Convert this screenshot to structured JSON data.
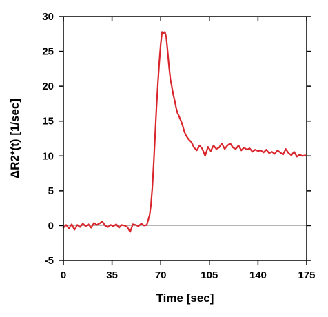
{
  "chart_data": {
    "type": "line",
    "title": "",
    "xlabel": "Time [sec]",
    "ylabel": "ΔR2*(t) [1/sec]",
    "xlim": [
      0,
      175
    ],
    "ylim": [
      -5,
      30
    ],
    "xticks": [
      0,
      35,
      70,
      105,
      140,
      175
    ],
    "yticks": [
      -5,
      0,
      5,
      10,
      15,
      20,
      25,
      30
    ],
    "grid": false,
    "reference_line_y": 0,
    "colors": {
      "series": "#d9262c",
      "reference_line": "#b4b4b4",
      "axes": "#000000"
    },
    "series": [
      {
        "name": "",
        "x": [
          0,
          2,
          4,
          6,
          8,
          10,
          12,
          14,
          16,
          18,
          20,
          22,
          24,
          26,
          28,
          30,
          32,
          34,
          36,
          38,
          40,
          42,
          44,
          46,
          48,
          50,
          52,
          54,
          56,
          58,
          60,
          62,
          63,
          64,
          65,
          66,
          67,
          68,
          69,
          70,
          71,
          72,
          73,
          74,
          75,
          76,
          77,
          78,
          79,
          80,
          81,
          82,
          83,
          84,
          85,
          86,
          87,
          88,
          90,
          92,
          94,
          96,
          98,
          100,
          102,
          104,
          106,
          108,
          110,
          112,
          114,
          116,
          118,
          120,
          122,
          124,
          126,
          128,
          130,
          132,
          134,
          136,
          138,
          140,
          142,
          144,
          146,
          148,
          150,
          152,
          154,
          156,
          158,
          160,
          162,
          164,
          166,
          168,
          170,
          172,
          174
        ],
        "y": [
          -0.3,
          0.1,
          -0.4,
          0.2,
          -0.6,
          0.1,
          -0.2,
          0.3,
          -0.1,
          0.2,
          -0.3,
          0.4,
          0.1,
          0.3,
          0.6,
          0.0,
          -0.2,
          0.1,
          -0.1,
          0.2,
          -0.3,
          0.1,
          0.0,
          -0.2,
          -0.9,
          0.2,
          0.1,
          -0.1,
          0.3,
          0.0,
          0.1,
          1.5,
          3.0,
          5.5,
          9.0,
          13.0,
          17.0,
          20.5,
          23.5,
          26.0,
          27.8,
          27.6,
          27.8,
          27.0,
          25.0,
          22.8,
          21.0,
          20.0,
          18.8,
          18.0,
          17.0,
          16.2,
          15.8,
          15.3,
          14.8,
          14.2,
          13.5,
          13.0,
          12.4,
          12.0,
          11.2,
          10.8,
          11.5,
          11.0,
          10.0,
          11.3,
          10.7,
          11.5,
          11.0,
          11.2,
          11.8,
          11.0,
          11.5,
          11.8,
          11.2,
          11.0,
          11.5,
          10.8,
          11.2,
          10.9,
          11.1,
          10.6,
          10.9,
          10.7,
          10.8,
          10.5,
          10.9,
          10.4,
          10.6,
          10.3,
          10.8,
          10.5,
          10.2,
          11.0,
          10.4,
          10.1,
          10.6,
          9.9,
          10.2,
          10.0,
          10.1
        ]
      }
    ]
  }
}
